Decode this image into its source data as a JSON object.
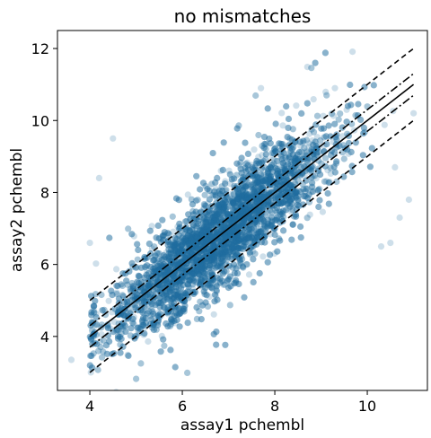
{
  "chart_data": {
    "type": "scatter",
    "title": "no mismatches",
    "xlabel": "assay1 pchembl",
    "ylabel": "assay2 pchembl",
    "xlim": [
      3.3,
      11.3
    ],
    "ylim": [
      2.5,
      12.5
    ],
    "xticks": [
      4,
      6,
      8,
      10
    ],
    "yticks": [
      4,
      6,
      8,
      10,
      12
    ],
    "grid": false,
    "point_color": "#1f6f9f",
    "point_opacity": 0.22,
    "scatter_distribution": {
      "x_range": [
        4,
        11
      ],
      "center_x": 6.8,
      "relation": "y ≈ x",
      "approx_point_count": 6000
    },
    "reference_lines": [
      {
        "style": "solid",
        "offset": 0,
        "x_range": [
          4,
          11
        ]
      },
      {
        "style": "dashdot",
        "offset": 0.3,
        "x_range": [
          4,
          11
        ]
      },
      {
        "style": "dashdot",
        "offset": -0.3,
        "x_range": [
          4,
          11
        ]
      },
      {
        "style": "dashed",
        "offset": 1,
        "x_range": [
          4,
          11
        ]
      },
      {
        "style": "dashed",
        "offset": -1,
        "x_range": [
          4,
          11
        ]
      }
    ]
  }
}
